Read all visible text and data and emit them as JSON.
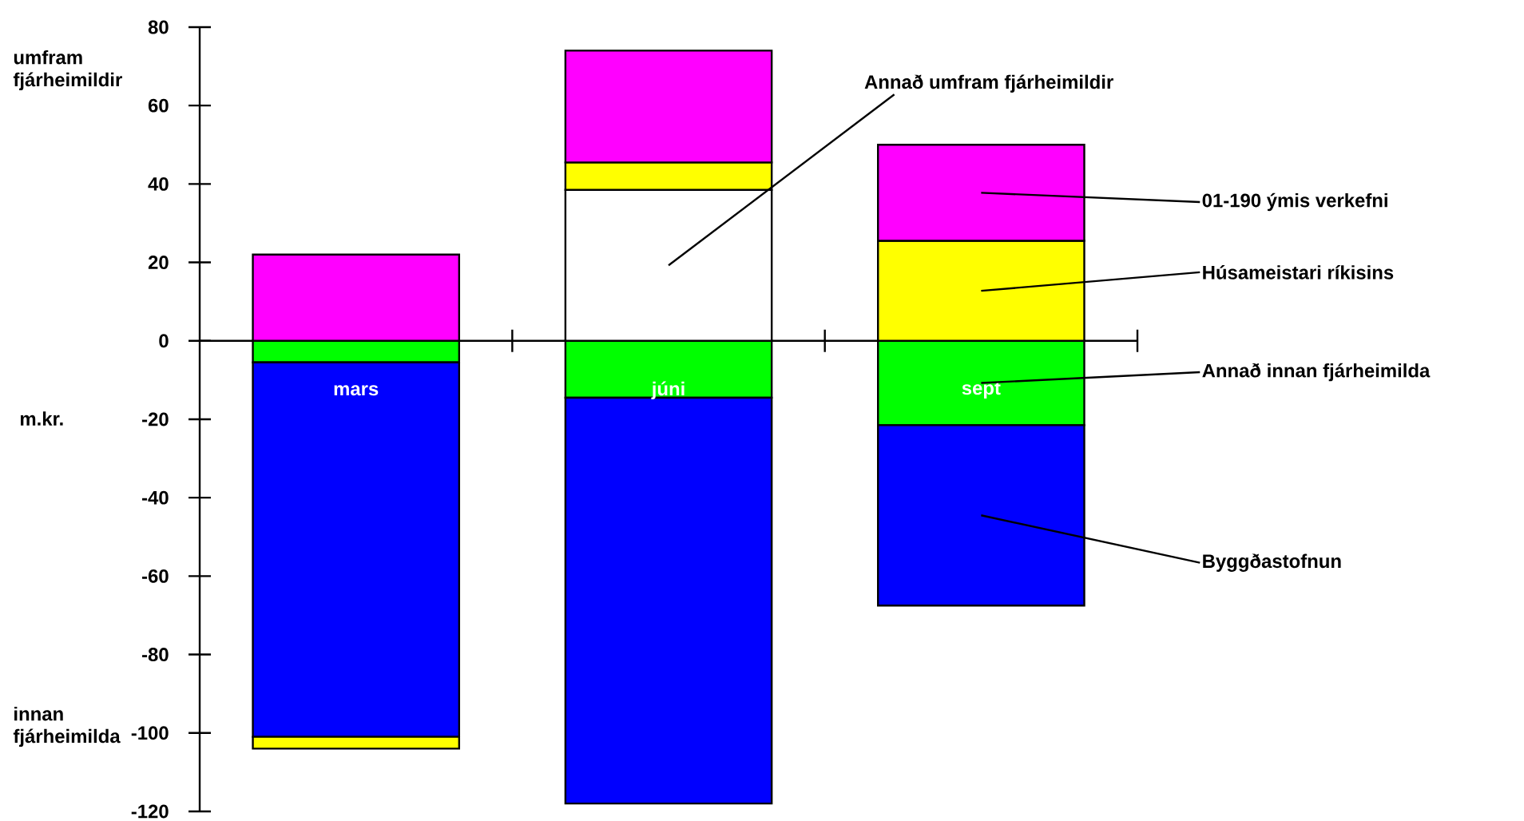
{
  "chart_data": {
    "type": "bar",
    "stacked": true,
    "ylabel": "m.kr.",
    "categories": [
      "mars",
      "júni",
      "sept"
    ],
    "series": [
      {
        "name": "Annað innan fjárheimilda",
        "color": "#00ff00",
        "values": [
          -5.5,
          -14.5,
          -21.5
        ]
      },
      {
        "name": "Byggðastofnun",
        "color": "#0000ff",
        "values": [
          -95.5,
          -103.5,
          -46
        ]
      },
      {
        "name": "Annað umfram fjárheimildir",
        "color": "#ffffff",
        "values": [
          null,
          38.5,
          null
        ]
      },
      {
        "name": "Húsameistari ríkisins",
        "color": "#ffff00",
        "values": [
          -3,
          7,
          25.5
        ]
      },
      {
        "name": "01-190 ýmis verkefni",
        "color": "#ff00ff",
        "values": [
          22,
          28.5,
          24.5
        ]
      }
    ],
    "ylim": [
      -120,
      80
    ],
    "yticks": [
      -120,
      -100,
      -80,
      -60,
      -40,
      -20,
      0,
      20,
      40,
      60,
      80
    ],
    "annotations": [
      "umfram fjárheimildir",
      "innan fjárheimilda"
    ]
  }
}
